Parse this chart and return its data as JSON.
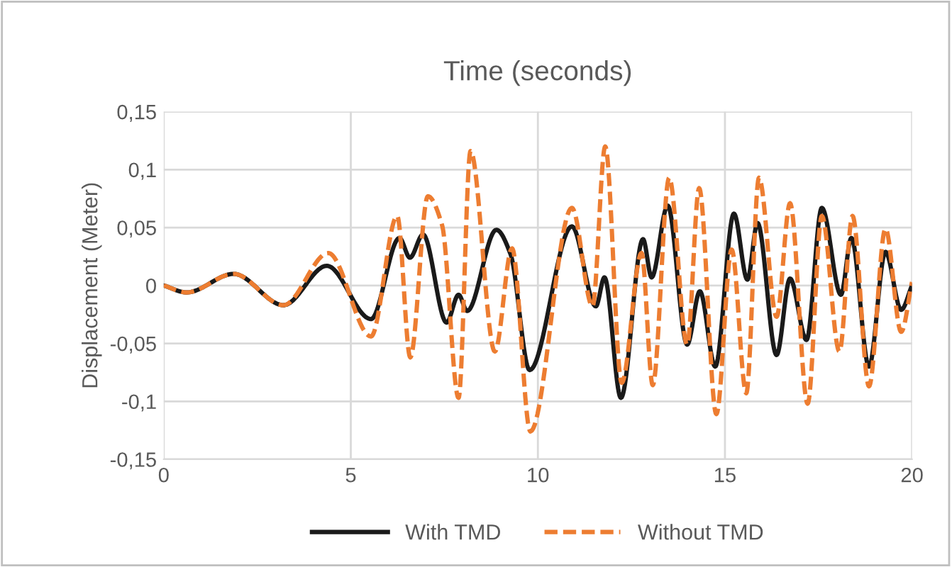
{
  "chart_data": {
    "type": "line",
    "title": "Time (seconds)",
    "ylabel": "Displacement (Meter)",
    "xlim": [
      0,
      20
    ],
    "xticks": [
      0,
      5,
      10,
      15,
      20
    ],
    "ylim": [
      -0.15,
      0.15
    ],
    "yticks": [
      {
        "value": -0.15,
        "label": "-0,15"
      },
      {
        "value": -0.1,
        "label": "-0,1"
      },
      {
        "value": -0.05,
        "label": "-0,05"
      },
      {
        "value": 0,
        "label": "0"
      },
      {
        "value": 0.05,
        "label": "0,05"
      },
      {
        "value": 0.1,
        "label": "0,1"
      },
      {
        "value": 0.15,
        "label": "0,15"
      }
    ],
    "grid": true,
    "legend": "bottom",
    "marker": "none",
    "series": [
      {
        "name": "With TMD",
        "color": "#1a1a1a",
        "line_style": "solid",
        "x": [
          0,
          0.61,
          1.87,
          3.2,
          4.36,
          5.54,
          6.3,
          6.58,
          6.93,
          7.56,
          7.88,
          8.11,
          8.89,
          9.27,
          9.78,
          10.91,
          11.55,
          11.78,
          12.22,
          12.81,
          13.04,
          13.47,
          13.99,
          14.33,
          14.74,
          15.24,
          15.6,
          15.87,
          16.38,
          16.74,
          17.18,
          17.59,
          18.1,
          18.38,
          18.85,
          19.29,
          19.71,
          20
        ],
        "values": [
          0,
          -0.006,
          0.01,
          -0.017,
          0.017,
          -0.029,
          0.041,
          0.024,
          0.044,
          -0.032,
          -0.008,
          -0.022,
          0.048,
          0.027,
          -0.073,
          0.051,
          -0.018,
          0.007,
          -0.097,
          0.04,
          0.007,
          0.069,
          -0.051,
          -0.005,
          -0.07,
          0.062,
          0.005,
          0.054,
          -0.06,
          0.006,
          -0.047,
          0.067,
          -0.008,
          0.041,
          -0.07,
          0.029,
          -0.021,
          0
        ]
      },
      {
        "name": "Without TMD",
        "color": "#ed7d31",
        "line_style": "dashed",
        "x": [
          0,
          0.61,
          1.87,
          3.2,
          4.4,
          5.54,
          6.24,
          6.59,
          7.06,
          7.44,
          7.88,
          8.2,
          8.85,
          9.31,
          9.8,
          10.91,
          11.46,
          11.8,
          12.24,
          12.77,
          13.07,
          13.51,
          13.99,
          14.31,
          14.77,
          15.18,
          15.57,
          15.91,
          16.38,
          16.74,
          17.21,
          17.59,
          18.06,
          18.41,
          18.85,
          19.29,
          19.71,
          20
        ],
        "values": [
          0,
          -0.006,
          0.01,
          -0.017,
          0.028,
          -0.044,
          0.06,
          -0.062,
          0.077,
          0.052,
          -0.097,
          0.116,
          -0.057,
          0.032,
          -0.126,
          0.067,
          -0.018,
          0.12,
          -0.084,
          0.028,
          -0.086,
          0.093,
          -0.051,
          0.084,
          -0.111,
          0.031,
          -0.093,
          0.093,
          -0.027,
          0.071,
          -0.102,
          0.06,
          -0.057,
          0.06,
          -0.087,
          0.049,
          -0.04,
          0.003
        ]
      }
    ]
  }
}
